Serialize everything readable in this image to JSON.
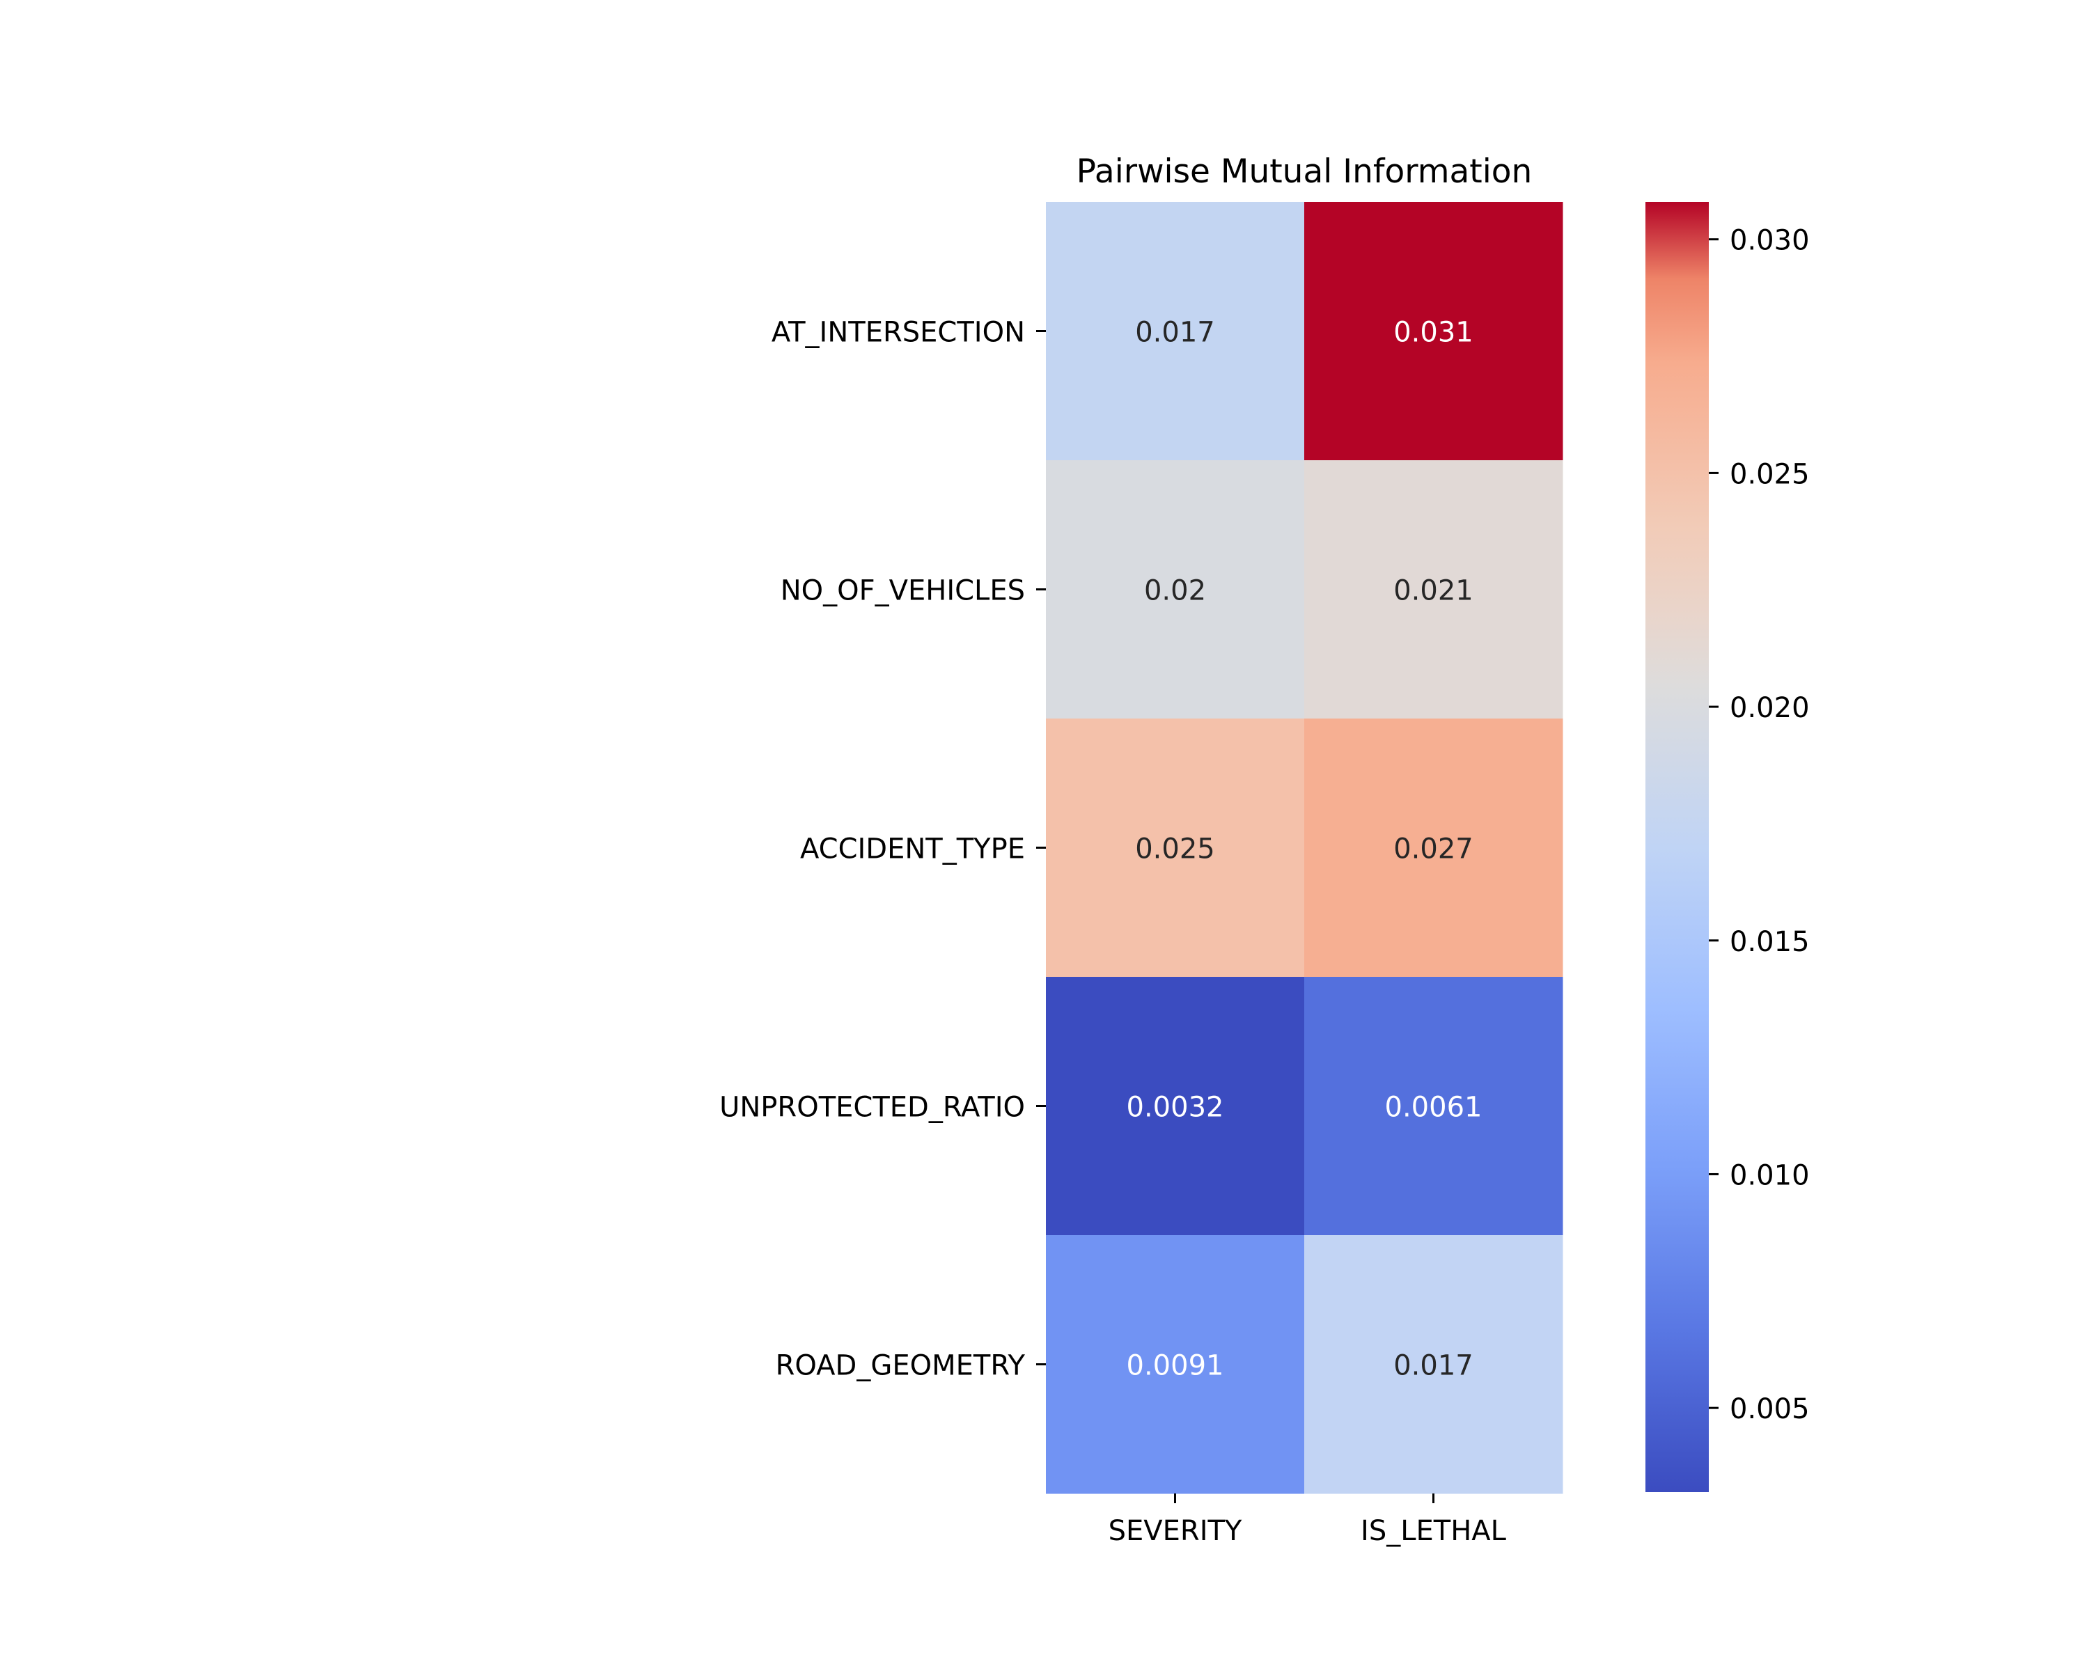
{
  "chart_data": {
    "type": "heatmap",
    "title": "Pairwise Mutual Information",
    "xlabel": "",
    "ylabel": "",
    "columns": [
      "SEVERITY",
      "IS_LETHAL"
    ],
    "rows": [
      "AT_INTERSECTION",
      "NO_OF_VEHICLES",
      "ACCIDENT_TYPE",
      "UNPROTECTED_RATIO",
      "ROAD_GEOMETRY"
    ],
    "values": [
      [
        0.0174,
        0.0308
      ],
      [
        0.0199,
        0.021
      ],
      [
        0.025,
        0.027
      ],
      [
        0.0032,
        0.0061
      ],
      [
        0.0091,
        0.0172
      ]
    ],
    "cell_labels": [
      [
        "0.017",
        "0.031"
      ],
      [
        "0.02",
        "0.021"
      ],
      [
        "0.025",
        "0.027"
      ],
      [
        "0.0032",
        "0.0061"
      ],
      [
        "0.0091",
        "0.017"
      ]
    ],
    "colormap": "coolwarm",
    "colorbar": {
      "vmin": 0.0032,
      "vmax": 0.0308,
      "ticks": [
        0.005,
        0.01,
        0.015,
        0.02,
        0.025,
        0.03
      ],
      "tick_labels": [
        "0.005",
        "0.010",
        "0.015",
        "0.020",
        "0.025",
        "0.030"
      ]
    },
    "grid": false,
    "legend": "colorbar-right"
  }
}
